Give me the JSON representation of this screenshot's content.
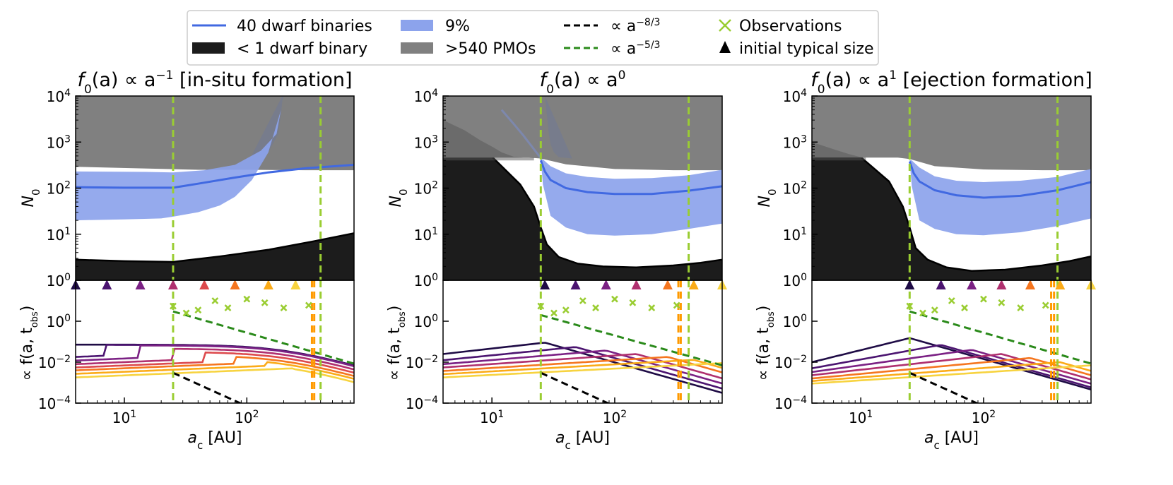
{
  "legend": {
    "items": [
      {
        "label": "40 dwarf binaries",
        "kind": "line",
        "color": "#4169e1"
      },
      {
        "label": "< 1 dwarf binary",
        "kind": "patch",
        "color": "#1c1c1c"
      },
      {
        "label": "9%",
        "kind": "patch",
        "color": "#8ca3ec"
      },
      {
        "label": ">540 PMOs",
        "kind": "patch",
        "color": "#808080"
      },
      {
        "label": "∝ a",
        "sup": "−8/3",
        "kind": "dash",
        "color": "#000000"
      },
      {
        "label": "∝ a",
        "sup": "−5/3",
        "kind": "dash",
        "color": "#2a8a1a"
      },
      {
        "label": "Observations",
        "kind": "x",
        "color": "#9acd32"
      },
      {
        "label": "initial typical size",
        "kind": "triangle",
        "color": "#000000"
      }
    ]
  },
  "colors": {
    "binary_line": "#4169e1",
    "binary_band": "#8ca3ec",
    "dwarf_fill": "#1c1c1c",
    "pmo_fill": "#808080",
    "vline": "#9acd32",
    "orange_vline": "#ff9a00",
    "power_83": "#000000",
    "power_53": "#2a8a1a",
    "obs": "#9acd32",
    "family": [
      "#1e0b45",
      "#4b1470",
      "#7b2184",
      "#b0306f",
      "#dd4a4d",
      "#f5761f",
      "#fbab18",
      "#f7d33f"
    ]
  },
  "chart_data": [
    {
      "title": "f0(a) ∝ a^−1 [in-situ formation]",
      "title_parts": {
        "f": "f",
        "sub": "0",
        "expr": "(a) ∝ a",
        "sup": "−1",
        "tail": " [in-situ formation]"
      },
      "top": {
        "type": "area",
        "ylabel": "N0",
        "ylabel_parts": {
          "main": "N",
          "sub": "0"
        },
        "ylim": [
          1,
          10000
        ],
        "yscale": "log",
        "yticks": [
          "10^0",
          "10^1",
          "10^2",
          "10^3",
          "10^4"
        ],
        "xlim": [
          4,
          750
        ],
        "xscale": "log",
        "series": {
          "dwarf_lower": {
            "x": [
              4,
              10,
              25,
              60,
              150,
              350,
              750
            ],
            "y": [
              2.8,
              2.6,
              2.5,
              3.3,
              4.6,
              7.0,
              10.5
            ]
          },
          "pmo_lower": {
            "x": [
              4,
              40,
              100,
              300,
              750
            ],
            "y": [
              290,
              250,
              250,
              245,
              245
            ]
          },
          "pmo_spike": {
            "x": [
              100,
              150,
              180,
              190,
              195,
              200,
              195
            ],
            "y": [
              320,
              600,
              1500,
              4000,
              8000,
              10000,
              10000
            ]
          },
          "band_upper": {
            "x": [
              4,
              15,
              25,
              45,
              80,
              130,
              175,
              190,
              200
            ],
            "y": [
              230,
              225,
              220,
              245,
              320,
              650,
              1500,
              5000,
              10000
            ]
          },
          "band_lower": {
            "x": [
              4,
              10,
              20,
              25,
              40,
              60,
              80,
              110,
              150,
              190,
              200
            ],
            "y": [
              20,
              21,
              22,
              24,
              30,
              42,
              65,
              150,
              600,
              5000,
              10000
            ]
          },
          "median": {
            "x": [
              4,
              10,
              25,
              40,
              80,
              150,
              300,
              750
            ],
            "y": [
              105,
              102,
              102,
              125,
              170,
              220,
              270,
              320
            ]
          }
        },
        "vlines": [
          25,
          400
        ]
      },
      "bottom": {
        "type": "line",
        "ylabel": "∝ f(a, t_obs)",
        "ylabel_parts": {
          "pre": "∝ f(a, t",
          "sub": "obs",
          "post": ")"
        },
        "xlabel": "a_c [AU]",
        "xlabel_parts": {
          "main": "a",
          "sub": "c",
          "post": " [AU]"
        },
        "ylim": [
          0.0001,
          100
        ],
        "yscale": "log",
        "yticks": [
          "10^−4",
          "10^−2",
          "10^0"
        ],
        "xticks": [
          "10^1",
          "10^2"
        ],
        "xlim": [
          4,
          750
        ],
        "family_knees": [
          4,
          7.2,
          13.5,
          25,
          45,
          80,
          150,
          250
        ],
        "family_plateau": [
          0.072,
          0.07,
          0.066,
          0.046,
          0.032,
          0.022,
          0.016,
          0.011
        ],
        "family_left": [
          0.072,
          0.018,
          0.012,
          0.008,
          0.0055,
          0.004,
          0.0027,
          0.0018
        ],
        "triangles_x": [
          4,
          7.2,
          13.5,
          25,
          45,
          80,
          150,
          250
        ],
        "obs": {
          "x": [
            25,
            32,
            40,
            55,
            70,
            100,
            140,
            200,
            320
          ],
          "y": [
            5.5,
            2.5,
            3.5,
            10,
            4.5,
            12,
            8,
            4.5,
            6
          ]
        },
        "power_53": {
          "x": [
            25,
            750
          ],
          "y": [
            3.0,
            0.0085
          ]
        },
        "power_83": {
          "x": [
            25,
            750
          ],
          "y": [
            0.003,
            3e-07
          ]
        },
        "orange_vlines": [
          340,
          355
        ],
        "green_vlines": [
          25,
          400
        ]
      }
    },
    {
      "title": "f0(a) ∝ a^0",
      "title_parts": {
        "f": "f",
        "sub": "0",
        "expr": "(a) ∝ a",
        "sup": "0",
        "tail": ""
      },
      "top": {
        "type": "area",
        "ylabel": "N0",
        "ylabel_parts": {
          "main": "N",
          "sub": "0"
        },
        "ylim": [
          1,
          10000
        ],
        "yscale": "log",
        "yticks": [
          "10^0",
          "10^1",
          "10^2",
          "10^3",
          "10^4"
        ],
        "xlim": [
          4,
          750
        ],
        "xscale": "log",
        "series": {
          "dwarf_lower": {
            "x": [
              4,
              10,
              17,
              22,
              25,
              28,
              35,
              50,
              80,
              150,
              300,
              500,
              750
            ],
            "y": [
              480,
              480,
              120,
              40,
              14,
              6,
              3.2,
              2.3,
              2.0,
              1.9,
              2.1,
              2.4,
              2.8
            ]
          },
          "pmo_lower": {
            "x": [
              4,
              10,
              20,
              25,
              40,
              100,
              300,
              750
            ],
            "y": [
              460,
              460,
              460,
              440,
              330,
              260,
              245,
              245
            ]
          },
          "pmo_overlay": {
            "x": [
              4,
              6,
              8,
              10,
              12,
              15,
              18,
              20,
              22
            ],
            "y": [
              3000,
              1800,
              1100,
              800,
              600,
              480,
              460,
              460,
              460
            ]
          },
          "pmo_spike": {
            "x": [
              27,
              28,
              29,
              30,
              32,
              35,
              45
            ],
            "y": [
              10000,
              4000,
              1600,
              900,
              600,
              470,
              440
            ]
          },
          "band_upper": {
            "x": [
              25,
              26,
              30,
              40,
              60,
              100,
              200,
              400,
              750
            ],
            "y": [
              430,
              420,
              300,
              210,
              175,
              160,
              165,
              190,
              250
            ]
          },
          "band_lower": {
            "x": [
              25,
              26,
              30,
              40,
              60,
              100,
              200,
              400,
              750
            ],
            "y": [
              420,
              120,
              25,
              14,
              10,
              9.3,
              10,
              13,
              17
            ]
          },
          "median": {
            "x": [
              25,
              27,
              30,
              40,
              60,
              100,
              200,
              400,
              750
            ],
            "y": [
              400,
              230,
              150,
              100,
              82,
              75,
              75,
              88,
              110
            ]
          },
          "median_faint": {
            "x": [
              12,
              15,
              18,
              22,
              25
            ],
            "y": [
              5000,
              2500,
              1400,
              700,
              450
            ]
          }
        },
        "vlines": [
          25,
          400
        ]
      },
      "bottom": {
        "type": "line",
        "ylabel": "∝ f(a, t_obs)",
        "ylabel_parts": {
          "pre": "∝ f(a, t",
          "sub": "obs",
          "post": ")"
        },
        "xlabel": "a_c [AU]",
        "xlabel_parts": {
          "main": "a",
          "sub": "c",
          "post": " [AU]"
        },
        "ylim": [
          0.0001,
          100
        ],
        "yscale": "log",
        "yticks": [
          "10^−4",
          "10^−2",
          "10^0"
        ],
        "xticks": [
          "10^1",
          "10^2"
        ],
        "xlim": [
          4,
          750
        ],
        "family_knees": [
          27,
          48,
          85,
          150,
          270,
          440,
          750
        ],
        "family_peaks": [
          0.09,
          0.055,
          0.037,
          0.025,
          0.018,
          0.013,
          0.009
        ],
        "family_left": [
          0.025,
          0.0125,
          0.008,
          0.0055,
          0.0037,
          0.0026,
          0.0018
        ],
        "triangles_x": [
          27,
          48,
          85,
          150,
          270,
          440,
          750
        ],
        "obs": {
          "x": [
            25,
            32,
            40,
            55,
            70,
            100,
            140,
            200,
            320
          ],
          "y": [
            5.5,
            2.5,
            3.5,
            10,
            4.5,
            12,
            8,
            4.5,
            6
          ]
        },
        "power_53": {
          "x": [
            25,
            750
          ],
          "y": [
            2.0,
            0.007
          ]
        },
        "power_83": {
          "x": [
            25,
            750
          ],
          "y": [
            0.003,
            3e-07
          ]
        },
        "orange_vlines": [
          330,
          345
        ],
        "green_vlines": [
          25,
          400
        ]
      }
    },
    {
      "title": "f0(a) ∝ a^1 [ejection formation]",
      "title_parts": {
        "f": "f",
        "sub": "0",
        "expr": "(a) ∝ a",
        "sup": "1",
        "tail": " [ejection formation]"
      },
      "top": {
        "type": "area",
        "ylabel": "N0",
        "ylabel_parts": {
          "main": "N",
          "sub": "0"
        },
        "ylim": [
          1,
          10000
        ],
        "yscale": "log",
        "yticks": [
          "10^0",
          "10^1",
          "10^2",
          "10^3",
          "10^4"
        ],
        "xlim": [
          4,
          750
        ],
        "xscale": "log",
        "series": {
          "dwarf_lower": {
            "x": [
              4,
              10,
              17,
              22,
              25,
              28,
              35,
              50,
              80,
              150,
              300,
              500,
              750
            ],
            "y": [
              470,
              470,
              140,
              40,
              14,
              5,
              2.8,
              1.9,
              1.6,
              1.7,
              2.1,
              2.6,
              3.3
            ]
          },
          "pmo_lower": {
            "x": [
              4,
              10,
              20,
              25,
              40,
              100,
              300,
              750
            ],
            "y": [
              460,
              460,
              460,
              430,
              300,
              255,
              245,
              245
            ]
          },
          "pmo_overlay": {
            "x": [
              4,
              6,
              8,
              10,
              11
            ],
            "y": [
              1000,
              700,
              550,
              470,
              460
            ]
          },
          "pmo_spike": {},
          "band_upper": {
            "x": [
              25,
              26,
              30,
              40,
              60,
              100,
              200,
              400,
              750
            ],
            "y": [
              410,
              400,
              280,
              180,
              145,
              135,
              145,
              175,
              260
            ]
          },
          "band_lower": {
            "x": [
              25,
              26,
              30,
              40,
              60,
              100,
              200,
              400,
              750
            ],
            "y": [
              400,
              110,
              20,
              13,
              10,
              9.5,
              11,
              15,
              22
            ]
          },
          "median": {
            "x": [
              25,
              27,
              30,
              40,
              60,
              100,
              200,
              400,
              750
            ],
            "y": [
              380,
              210,
              140,
              90,
              70,
              62,
              68,
              90,
              135
            ]
          }
        },
        "vlines": [
          25,
          400
        ]
      },
      "bottom": {
        "type": "line",
        "ylabel": "∝ f(a, t_obs)",
        "ylabel_parts": {
          "pre": "∝ f(a, t",
          "sub": "obs",
          "post": ")"
        },
        "xlabel": "a_c [AU]",
        "xlabel_parts": {
          "main": "a",
          "sub": "c",
          "post": " [AU]"
        },
        "ylim": [
          0.0001,
          100
        ],
        "yscale": "log",
        "yticks": [
          "10^−4",
          "10^−2",
          "10^0"
        ],
        "xticks": [
          "10^1",
          "10^2"
        ],
        "xlim": [
          4,
          750
        ],
        "family_knees": [
          25,
          45,
          80,
          140,
          240,
          420,
          750
        ],
        "family_peaks": [
          0.15,
          0.07,
          0.04,
          0.025,
          0.016,
          0.01,
          0.007
        ],
        "family_left": [
          0.01,
          0.005,
          0.0033,
          0.0023,
          0.0016,
          0.0012,
          0.0009
        ],
        "triangles_x": [
          25,
          45,
          80,
          140,
          240,
          420,
          750
        ],
        "obs": {
          "x": [
            25,
            32,
            40,
            55,
            70,
            100,
            140,
            200,
            320
          ],
          "y": [
            5.5,
            2.5,
            3.5,
            10,
            4.5,
            12,
            8,
            4.5,
            6
          ]
        },
        "power_53": {
          "x": [
            25,
            750
          ],
          "y": [
            3.0,
            0.0085
          ]
        },
        "power_83": {
          "x": [
            25,
            750
          ],
          "y": [
            0.003,
            3e-07
          ]
        },
        "orange_vlines": [
          355,
          375
        ],
        "green_vlines": [
          25,
          400
        ]
      }
    }
  ]
}
